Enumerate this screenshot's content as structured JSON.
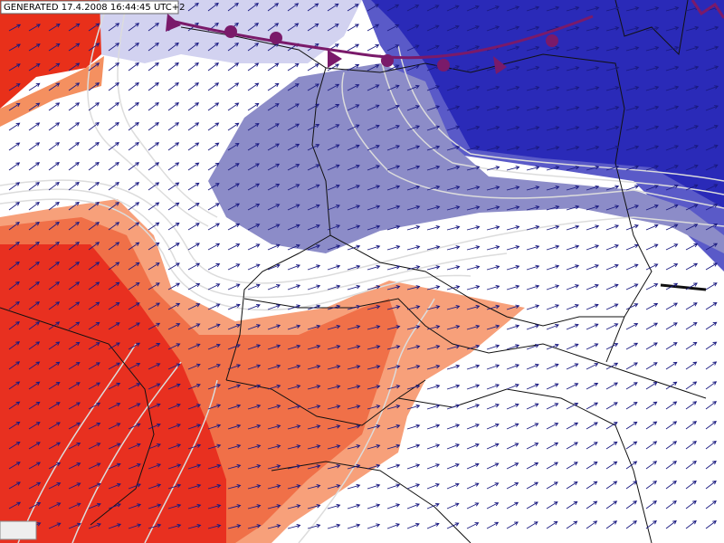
{
  "header": {
    "stamp": "GENERATED 17.4.2008 16:44:45 UTC+2"
  }
}
